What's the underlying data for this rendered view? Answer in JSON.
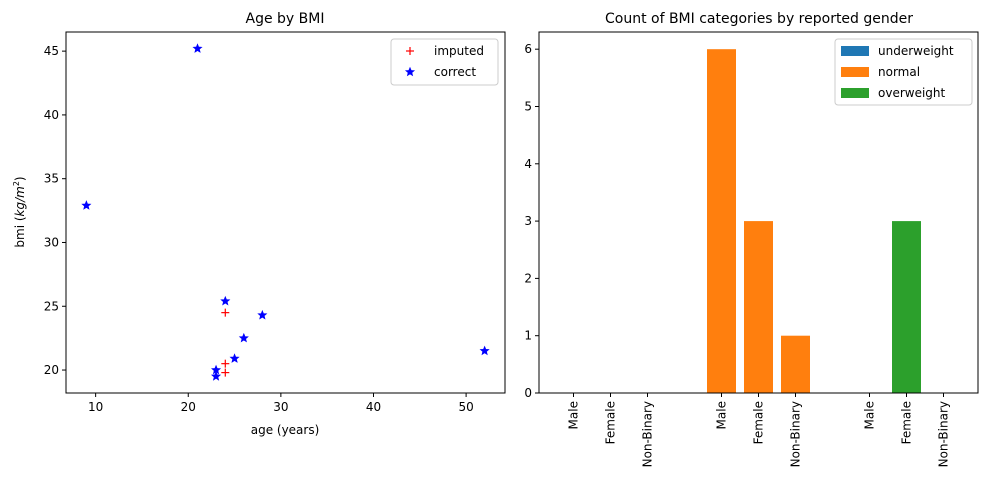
{
  "chart_data": [
    {
      "type": "scatter",
      "title": "Age by BMI",
      "xlabel": "age (years)",
      "ylabel": "bmi (kg/m²)",
      "xlim": [
        6.8,
        54.2
      ],
      "ylim": [
        18.2,
        46.5
      ],
      "xticks": [
        10,
        20,
        30,
        40,
        50
      ],
      "yticks": [
        20,
        25,
        30,
        35,
        40,
        45
      ],
      "legend_position": "top-right",
      "series": [
        {
          "name": "imputed",
          "marker": "plus",
          "color": "#ff0000",
          "points": [
            [
              24,
              24.5
            ],
            [
              24,
              20.5
            ],
            [
              24,
              19.8
            ]
          ]
        },
        {
          "name": "correct",
          "marker": "star",
          "color": "#0000ff",
          "points": [
            [
              21,
              45.2
            ],
            [
              9,
              32.9
            ],
            [
              24,
              25.4
            ],
            [
              28,
              24.3
            ],
            [
              26,
              22.5
            ],
            [
              25,
              20.9
            ],
            [
              23,
              20.0
            ],
            [
              23,
              19.5
            ],
            [
              52,
              21.5
            ]
          ]
        }
      ]
    },
    {
      "type": "bar",
      "title": "Count of BMI categories by reported gender",
      "ylim": [
        0,
        6.3
      ],
      "yticks": [
        0,
        1,
        2,
        3,
        4,
        5,
        6
      ],
      "legend_position": "top-right",
      "tick_labels": [
        "Male",
        "Female",
        "Non-Binary",
        "Male",
        "Female",
        "Non-Binary",
        "Male",
        "Female",
        "Non-Binary"
      ],
      "series": [
        {
          "name": "underweight",
          "color": "#1f77b4",
          "values": [
            0,
            0,
            0
          ]
        },
        {
          "name": "normal",
          "color": "#ff7f0e",
          "values": [
            6,
            3,
            1
          ]
        },
        {
          "name": "overweight",
          "color": "#2ca02c",
          "values": [
            0,
            3,
            0
          ]
        }
      ]
    }
  ]
}
